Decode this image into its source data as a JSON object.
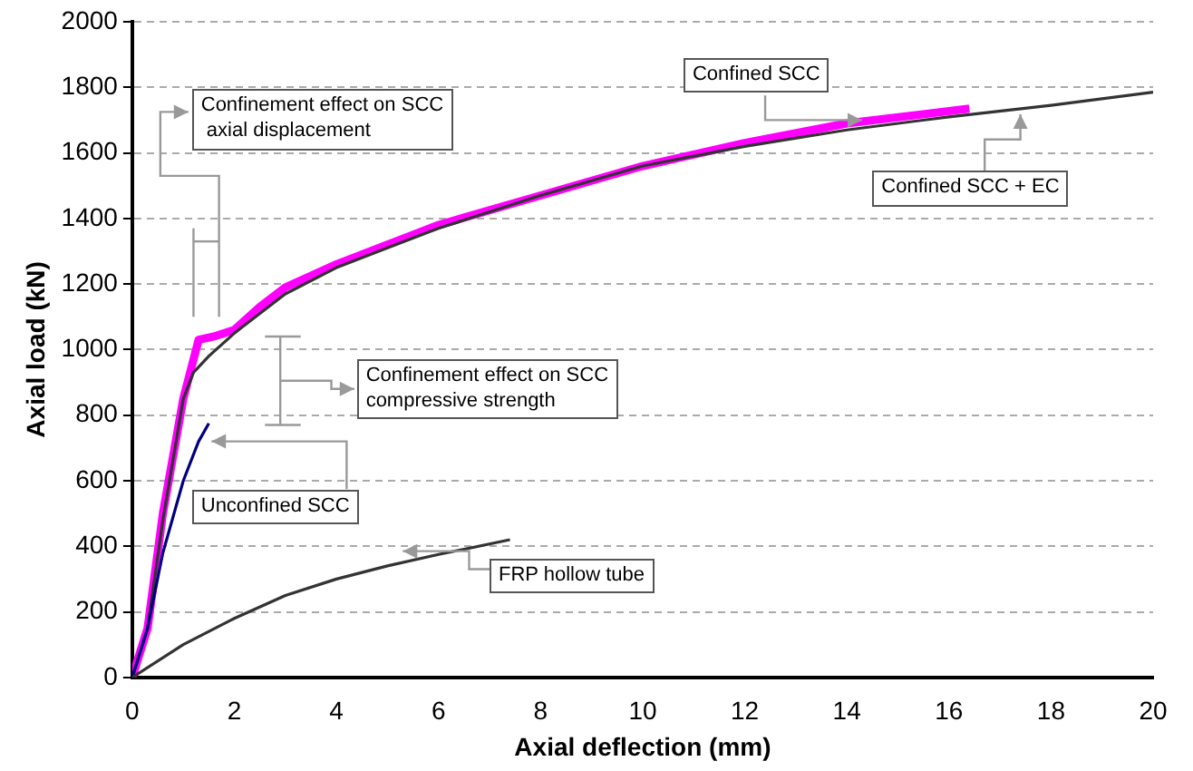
{
  "chart_data": {
    "type": "line",
    "xlabel": "Axial deflection (mm)",
    "ylabel": "Axial load (kN)",
    "xlim": [
      0,
      20
    ],
    "xticks": [
      0,
      2,
      4,
      6,
      8,
      10,
      12,
      14,
      16,
      18,
      20
    ],
    "ylim": [
      0,
      2000
    ],
    "yticks": [
      0,
      200,
      400,
      600,
      800,
      1000,
      1200,
      1400,
      1600,
      1800,
      2000
    ],
    "grid": "y",
    "legend": false,
    "marker": "none",
    "line_style": "solid",
    "annotations": [
      "Confinement effect on SCC\n axial displacement",
      "Confinement effect on SCC\ncompressive strength"
    ],
    "series": [
      {
        "name": "Confined SCC",
        "color": "#ff00ff",
        "x": [
          0,
          0.3,
          0.6,
          1.0,
          1.3,
          1.6,
          2.0,
          2.5,
          3,
          4,
          5,
          6,
          8,
          10,
          12,
          14,
          16.4
        ],
        "values": [
          0,
          150,
          500,
          850,
          1030,
          1040,
          1060,
          1130,
          1190,
          1260,
          1320,
          1380,
          1470,
          1560,
          1630,
          1690,
          1735
        ]
      },
      {
        "name": "Confined SCC + EC",
        "color": "#333333",
        "x": [
          0,
          0.3,
          0.6,
          1.0,
          1.2,
          1.5,
          2.0,
          3,
          4,
          5,
          6,
          8,
          10,
          12,
          14,
          16,
          18,
          20
        ],
        "values": [
          0,
          150,
          480,
          850,
          930,
          980,
          1050,
          1170,
          1250,
          1310,
          1370,
          1470,
          1560,
          1620,
          1670,
          1710,
          1745,
          1785
        ]
      },
      {
        "name": "Unconfined SCC",
        "color": "#000080",
        "x": [
          0,
          0.3,
          0.6,
          1.0,
          1.3,
          1.5
        ],
        "values": [
          0,
          150,
          380,
          600,
          720,
          775
        ]
      },
      {
        "name": "FRP hollow tube",
        "color": "#333333",
        "x": [
          0,
          1,
          2,
          3,
          4,
          5,
          6,
          7.4
        ],
        "values": [
          0,
          100,
          180,
          250,
          300,
          340,
          375,
          420
        ]
      }
    ]
  }
}
